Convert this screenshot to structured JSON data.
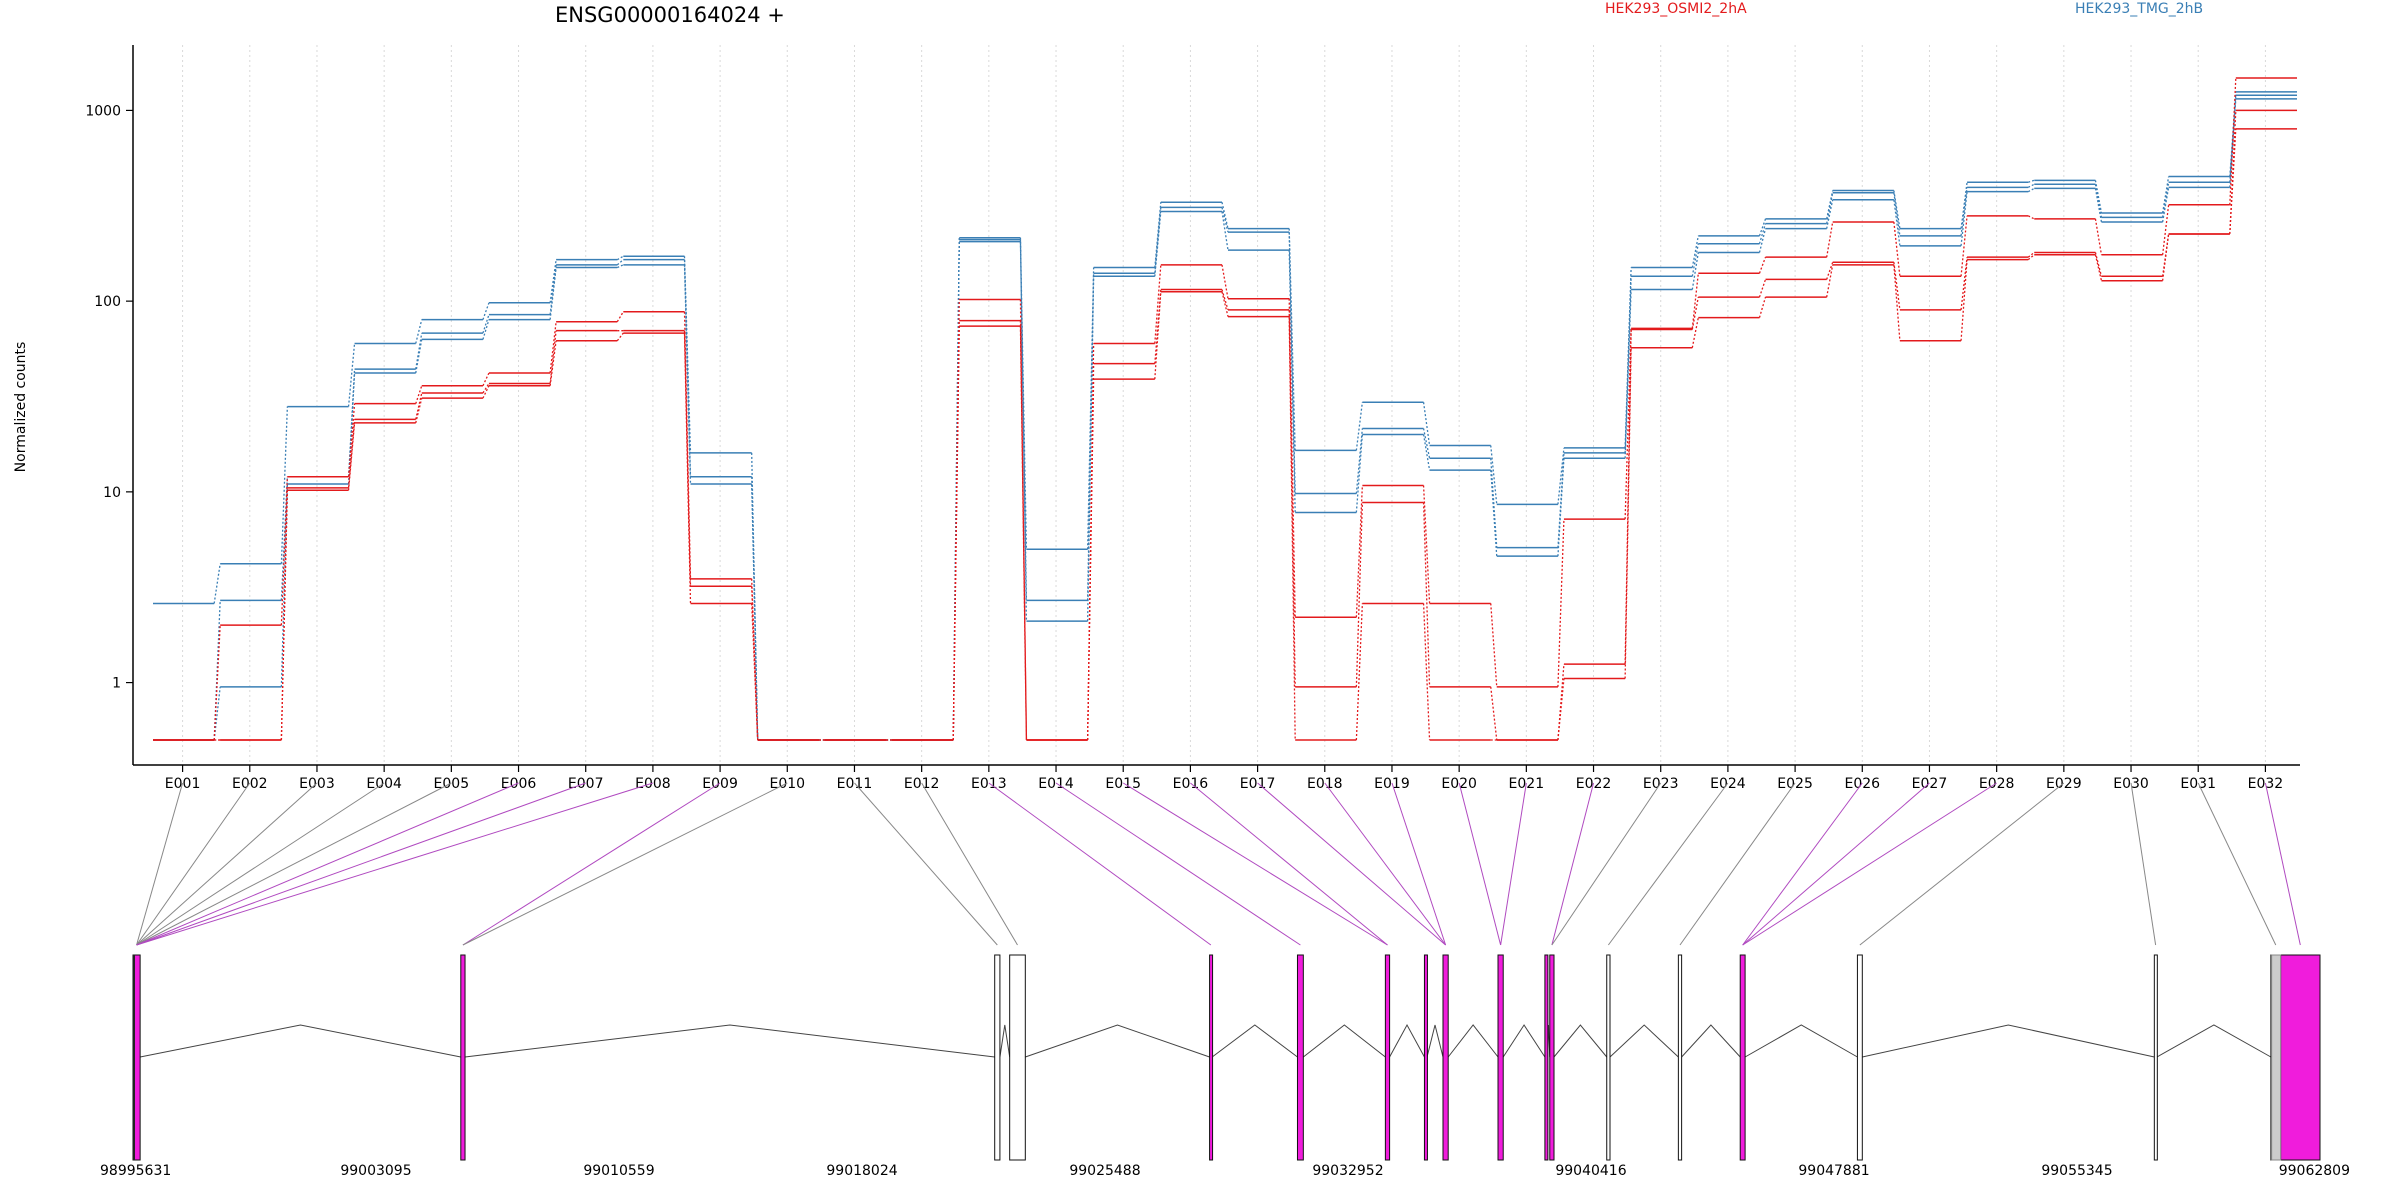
{
  "chart_data": {
    "type": "line",
    "title": "ENSG00000164024 +",
    "ylabel": "Normalized counts",
    "xlabel": "",
    "y_scale": "log",
    "y_ticks": [
      "1",
      "10",
      "100",
      "1000"
    ],
    "grid": "vertical dotted",
    "legend": [
      {
        "name": "HEK293_OSMI2_2hA",
        "color": "#e31a1c"
      },
      {
        "name": "HEK293_TMG_2hB",
        "color": "#3a7fb5"
      }
    ],
    "categories": [
      "E001",
      "E002",
      "E003",
      "E004",
      "E005",
      "E006",
      "E007",
      "E008",
      "E009",
      "E010",
      "E011",
      "E012",
      "E013",
      "E014",
      "E015",
      "E016",
      "E017",
      "E018",
      "E019",
      "E020",
      "E021",
      "E022",
      "E023",
      "E024",
      "E025",
      "E026",
      "E027",
      "E028",
      "E029",
      "E030",
      "E031",
      "E032"
    ],
    "series": [
      {
        "group": "HEK293_TMG_2hB",
        "color": "#3a7fb5",
        "values": [
          2.6,
          4.2,
          28,
          60,
          80,
          98,
          165,
          172,
          16,
          0.5,
          0.5,
          0.5,
          215,
          5.0,
          150,
          330,
          240,
          16.5,
          29.5,
          17.5,
          8.6,
          17,
          150,
          220,
          270,
          380,
          240,
          420,
          430,
          290,
          450,
          1250
        ]
      },
      {
        "group": "HEK293_TMG_2hB",
        "color": "#3a7fb5",
        "values": [
          0.5,
          2.7,
          12,
          44,
          68,
          85,
          155,
          165,
          12,
          0.5,
          0.5,
          0.5,
          210,
          2.7,
          140,
          310,
          230,
          9.8,
          21.5,
          15,
          5.1,
          16,
          135,
          200,
          255,
          370,
          220,
          395,
          410,
          275,
          420,
          1200
        ]
      },
      {
        "group": "HEK293_TMG_2hB",
        "color": "#3a7fb5",
        "values": [
          0.5,
          0.95,
          11,
          42,
          63,
          80,
          150,
          155,
          11,
          0.5,
          0.5,
          0.5,
          205,
          2.1,
          135,
          295,
          185,
          7.8,
          20,
          13,
          4.6,
          15,
          115,
          180,
          240,
          340,
          195,
          375,
          390,
          260,
          395,
          1150
        ]
      },
      {
        "group": "HEK293_OSMI2_2hA",
        "color": "#e31a1c",
        "values": [
          0.5,
          2.0,
          12,
          29,
          36,
          42,
          78,
          88,
          3.5,
          0.5,
          0.5,
          0.5,
          102,
          0.5,
          60,
          155,
          103,
          2.2,
          10.8,
          2.6,
          0.95,
          7.2,
          72,
          140,
          170,
          260,
          135,
          280,
          270,
          175,
          320,
          1480
        ]
      },
      {
        "group": "HEK293_OSMI2_2hA",
        "color": "#e31a1c",
        "values": [
          0.5,
          0.5,
          10.5,
          24,
          33,
          37,
          70,
          70,
          3.2,
          0.5,
          0.5,
          0.5,
          79,
          0.5,
          47,
          115,
          90,
          0.95,
          8.8,
          0.95,
          0.5,
          1.25,
          71,
          105,
          130,
          160,
          90,
          170,
          180,
          135,
          225,
          1000
        ]
      },
      {
        "group": "HEK293_OSMI2_2hA",
        "color": "#e31a1c",
        "values": [
          0.5,
          0.5,
          10.2,
          23,
          31,
          36,
          62,
          68,
          2.6,
          0.5,
          0.5,
          0.5,
          74,
          0.5,
          39,
          112,
          83,
          0.5,
          2.6,
          0.5,
          0.5,
          1.05,
          57,
          82,
          105,
          155,
          62,
          165,
          175,
          128,
          225,
          800
        ]
      }
    ],
    "genomic_axis": {
      "tick_labels": [
        "98995631",
        "99003095",
        "99010559",
        "99018024",
        "99025488",
        "99032952",
        "99040416",
        "99047881",
        "99055345",
        "99062809"
      ],
      "start": 98995631,
      "end": 99062809
    },
    "exon_model": [
      {
        "start": 98995631,
        "end": 98995850,
        "significant": true
      },
      {
        "start": 99005700,
        "end": 99005830,
        "significant": true
      },
      {
        "start": 99022100,
        "end": 99022260,
        "significant": false
      },
      {
        "start": 99022560,
        "end": 99023040,
        "significant": false
      },
      {
        "start": 99028700,
        "end": 99028780,
        "significant": true
      },
      {
        "start": 99031400,
        "end": 99031580,
        "significant": true
      },
      {
        "start": 99034100,
        "end": 99034230,
        "significant": true
      },
      {
        "start": 99035300,
        "end": 99035380,
        "significant": true
      },
      {
        "start": 99035870,
        "end": 99036030,
        "significant": true
      },
      {
        "start": 99037560,
        "end": 99037720,
        "significant": true
      },
      {
        "start": 99039000,
        "end": 99039070,
        "significant": true
      },
      {
        "start": 99039150,
        "end": 99039280,
        "significant": true
      },
      {
        "start": 99040900,
        "end": 99041000,
        "significant": false
      },
      {
        "start": 99043100,
        "end": 99043200,
        "significant": false
      },
      {
        "start": 99045000,
        "end": 99045150,
        "significant": true
      },
      {
        "start": 99048600,
        "end": 99048750,
        "significant": false
      },
      {
        "start": 99057720,
        "end": 99057800,
        "significant": false
      },
      {
        "start": 99061300,
        "end": 99061600,
        "significant": false
      },
      {
        "start": 99061600,
        "end": 99062809,
        "significant": true
      }
    ],
    "exon_links": [
      {
        "bin": "E001",
        "exon": 0,
        "significant": false
      },
      {
        "bin": "E002",
        "exon": 0,
        "significant": false
      },
      {
        "bin": "E003",
        "exon": 0,
        "significant": false
      },
      {
        "bin": "E004",
        "exon": 0,
        "significant": false
      },
      {
        "bin": "E005",
        "exon": 0,
        "significant": false
      },
      {
        "bin": "E006",
        "exon": 0,
        "significant": true
      },
      {
        "bin": "E007",
        "exon": 0,
        "significant": true
      },
      {
        "bin": "E008",
        "exon": 0,
        "significant": true
      },
      {
        "bin": "E009",
        "exon": 1,
        "significant": true
      },
      {
        "bin": "E010",
        "exon": 1,
        "significant": false
      },
      {
        "bin": "E011",
        "exon": 2,
        "significant": false
      },
      {
        "bin": "E012",
        "exon": 3,
        "significant": false
      },
      {
        "bin": "E013",
        "exon": 4,
        "significant": true
      },
      {
        "bin": "E014",
        "exon": 5,
        "significant": true
      },
      {
        "bin": "E015",
        "exon": 6,
        "significant": true
      },
      {
        "bin": "E016",
        "exon": 6,
        "significant": true
      },
      {
        "bin": "E017",
        "exon": 8,
        "significant": true
      },
      {
        "bin": "E018",
        "exon": 8,
        "significant": true
      },
      {
        "bin": "E019",
        "exon": 8,
        "significant": true
      },
      {
        "bin": "E020",
        "exon": 9,
        "significant": true
      },
      {
        "bin": "E021",
        "exon": 9,
        "significant": true
      },
      {
        "bin": "E022",
        "exon": 11,
        "significant": true
      },
      {
        "bin": "E023",
        "exon": 11,
        "significant": false
      },
      {
        "bin": "E024",
        "exon": 12,
        "significant": false
      },
      {
        "bin": "E025",
        "exon": 13,
        "significant": false
      },
      {
        "bin": "E026",
        "exon": 14,
        "significant": true
      },
      {
        "bin": "E027",
        "exon": 14,
        "significant": true
      },
      {
        "bin": "E028",
        "exon": 14,
        "significant": true
      },
      {
        "bin": "E029",
        "exon": 15,
        "significant": false
      },
      {
        "bin": "E030",
        "exon": 16,
        "significant": false
      },
      {
        "bin": "E031",
        "exon": 17,
        "significant": false
      },
      {
        "bin": "E032",
        "exon": 18,
        "significant": true
      }
    ]
  }
}
